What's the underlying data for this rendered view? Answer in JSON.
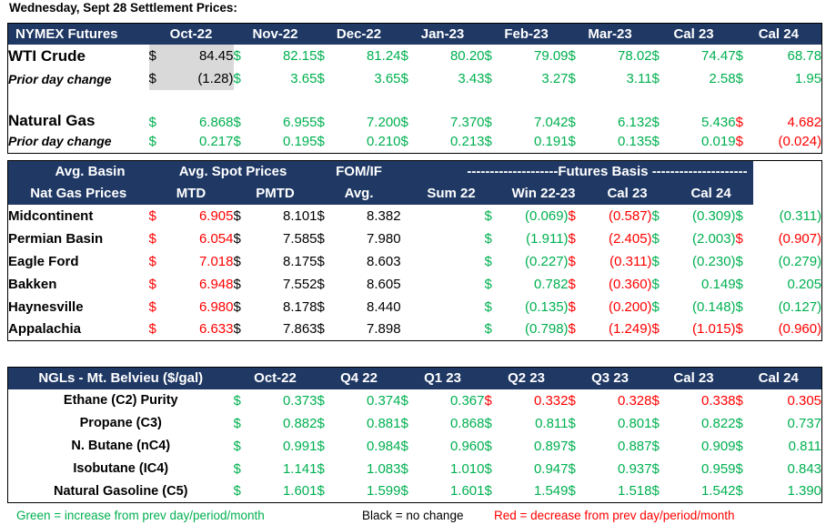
{
  "title": "Wednesday, Sept 28 Settlement Prices:",
  "nymex": {
    "header": [
      "NYMEX Futures",
      "Oct-22",
      "Nov-22",
      "Dec-22",
      "Jan-23",
      "Feb-23",
      "Mar-23",
      "Cal 23",
      "Cal 24"
    ],
    "rows": [
      {
        "label": "WTI Crude",
        "style": "big",
        "values": [
          "84.45",
          "82.15",
          "81.24",
          "80.20",
          "79.09",
          "78.02",
          "74.47",
          "68.78"
        ],
        "colors": [
          "k",
          "g",
          "g",
          "g",
          "g",
          "g",
          "g",
          "g"
        ]
      },
      {
        "label": "Prior day change",
        "style": "ital",
        "values": [
          "(1.28)",
          "3.65",
          "3.65",
          "3.43",
          "3.27",
          "3.11",
          "2.58",
          "1.95"
        ],
        "colors": [
          "k",
          "g",
          "g",
          "g",
          "g",
          "g",
          "g",
          "g"
        ]
      },
      {
        "label": "Natural Gas",
        "style": "big",
        "values": [
          "6.868",
          "6.955",
          "7.200",
          "7.370",
          "7.042",
          "6.132",
          "5.436",
          "4.682"
        ],
        "colors": [
          "g",
          "g",
          "g",
          "g",
          "g",
          "g",
          "g",
          "r"
        ]
      },
      {
        "label": "Prior day change",
        "style": "ital",
        "values": [
          "0.217",
          "0.195",
          "0.210",
          "0.213",
          "0.191",
          "0.135",
          "0.019",
          "(0.024)"
        ],
        "colors": [
          "g",
          "g",
          "g",
          "g",
          "g",
          "g",
          "g",
          "r"
        ]
      }
    ]
  },
  "basin": {
    "header1": [
      "Avg. Basin",
      "Avg. Spot Prices",
      "FOM/IF",
      "--------------------Futures Basis ---------------------"
    ],
    "header2": [
      "Nat Gas Prices",
      "MTD",
      "PMTD",
      "Avg.",
      "Sum 22",
      "Win 22-23",
      "Cal 23",
      "Cal 24"
    ],
    "rows": [
      {
        "label": "Midcontinent",
        "values": [
          "6.905",
          "8.101",
          "8.382",
          "(0.069)",
          "(0.587)",
          "(0.309)",
          "(0.311)"
        ],
        "colors": [
          "r",
          "k",
          "k",
          "g",
          "r",
          "g",
          "g"
        ]
      },
      {
        "label": "Permian Basin",
        "values": [
          "6.054",
          "7.585",
          "7.980",
          "(1.911)",
          "(2.405)",
          "(2.003)",
          "(0.907)"
        ],
        "colors": [
          "r",
          "k",
          "k",
          "g",
          "r",
          "g",
          "r"
        ]
      },
      {
        "label": "Eagle Ford",
        "values": [
          "7.018",
          "8.175",
          "8.603",
          "(0.227)",
          "(0.311)",
          "(0.230)",
          "(0.279)"
        ],
        "colors": [
          "r",
          "k",
          "k",
          "g",
          "r",
          "g",
          "g"
        ]
      },
      {
        "label": "Bakken",
        "values": [
          "6.948",
          "7.552",
          "8.605",
          "0.782",
          "(0.360)",
          "0.149",
          "0.205"
        ],
        "colors": [
          "r",
          "k",
          "k",
          "g",
          "r",
          "g",
          "g"
        ]
      },
      {
        "label": "Haynesville",
        "values": [
          "6.980",
          "8.178",
          "8.440",
          "(0.135)",
          "(0.200)",
          "(0.148)",
          "(0.127)"
        ],
        "colors": [
          "r",
          "k",
          "k",
          "g",
          "r",
          "g",
          "g"
        ]
      },
      {
        "label": "Appalachia",
        "values": [
          "6.633",
          "7.863",
          "7.898",
          "(0.798)",
          "(1.249)",
          "(1.015)",
          "(0.960)"
        ],
        "colors": [
          "r",
          "k",
          "k",
          "g",
          "r",
          "r",
          "r"
        ]
      }
    ]
  },
  "ngl": {
    "header": [
      "NGLs - Mt. Belvieu ($/gal)",
      "Oct-22",
      "Q4 22",
      "Q1 23",
      "Q2 23",
      "Q3 23",
      "Cal 23",
      "Cal 24"
    ],
    "rows": [
      {
        "label": "Ethane (C2) Purity",
        "values": [
          "0.373",
          "0.374",
          "0.367",
          "0.332",
          "0.328",
          "0.338",
          "0.305"
        ],
        "colors": [
          "g",
          "g",
          "g",
          "r",
          "r",
          "r",
          "r"
        ]
      },
      {
        "label": "Propane (C3)",
        "values": [
          "0.882",
          "0.881",
          "0.868",
          "0.811",
          "0.801",
          "0.822",
          "0.737"
        ],
        "colors": [
          "g",
          "g",
          "g",
          "g",
          "g",
          "g",
          "g"
        ]
      },
      {
        "label": "N. Butane (nC4)",
        "values": [
          "0.991",
          "0.984",
          "0.960",
          "0.897",
          "0.887",
          "0.909",
          "0.811"
        ],
        "colors": [
          "g",
          "g",
          "g",
          "g",
          "g",
          "g",
          "g"
        ]
      },
      {
        "label": "Isobutane (IC4)",
        "values": [
          "1.141",
          "1.083",
          "1.010",
          "0.947",
          "0.937",
          "0.959",
          "0.843"
        ],
        "colors": [
          "g",
          "g",
          "g",
          "g",
          "g",
          "g",
          "g"
        ]
      },
      {
        "label": "Natural Gasoline (C5)",
        "values": [
          "1.601",
          "1.599",
          "1.601",
          "1.549",
          "1.518",
          "1.542",
          "1.390"
        ],
        "colors": [
          "g",
          "g",
          "g",
          "g",
          "g",
          "g",
          "g"
        ]
      }
    ]
  },
  "currency": "$",
  "legend": {
    "green": "Green = increase from prev day/period/month",
    "black": "Black = no change",
    "red": "Red = decrease from prev day/period/month"
  },
  "palette": {
    "header_bg": "#1f3864",
    "green": "#00b050",
    "red": "#ff0000",
    "shade": "#d9d9d9"
  }
}
